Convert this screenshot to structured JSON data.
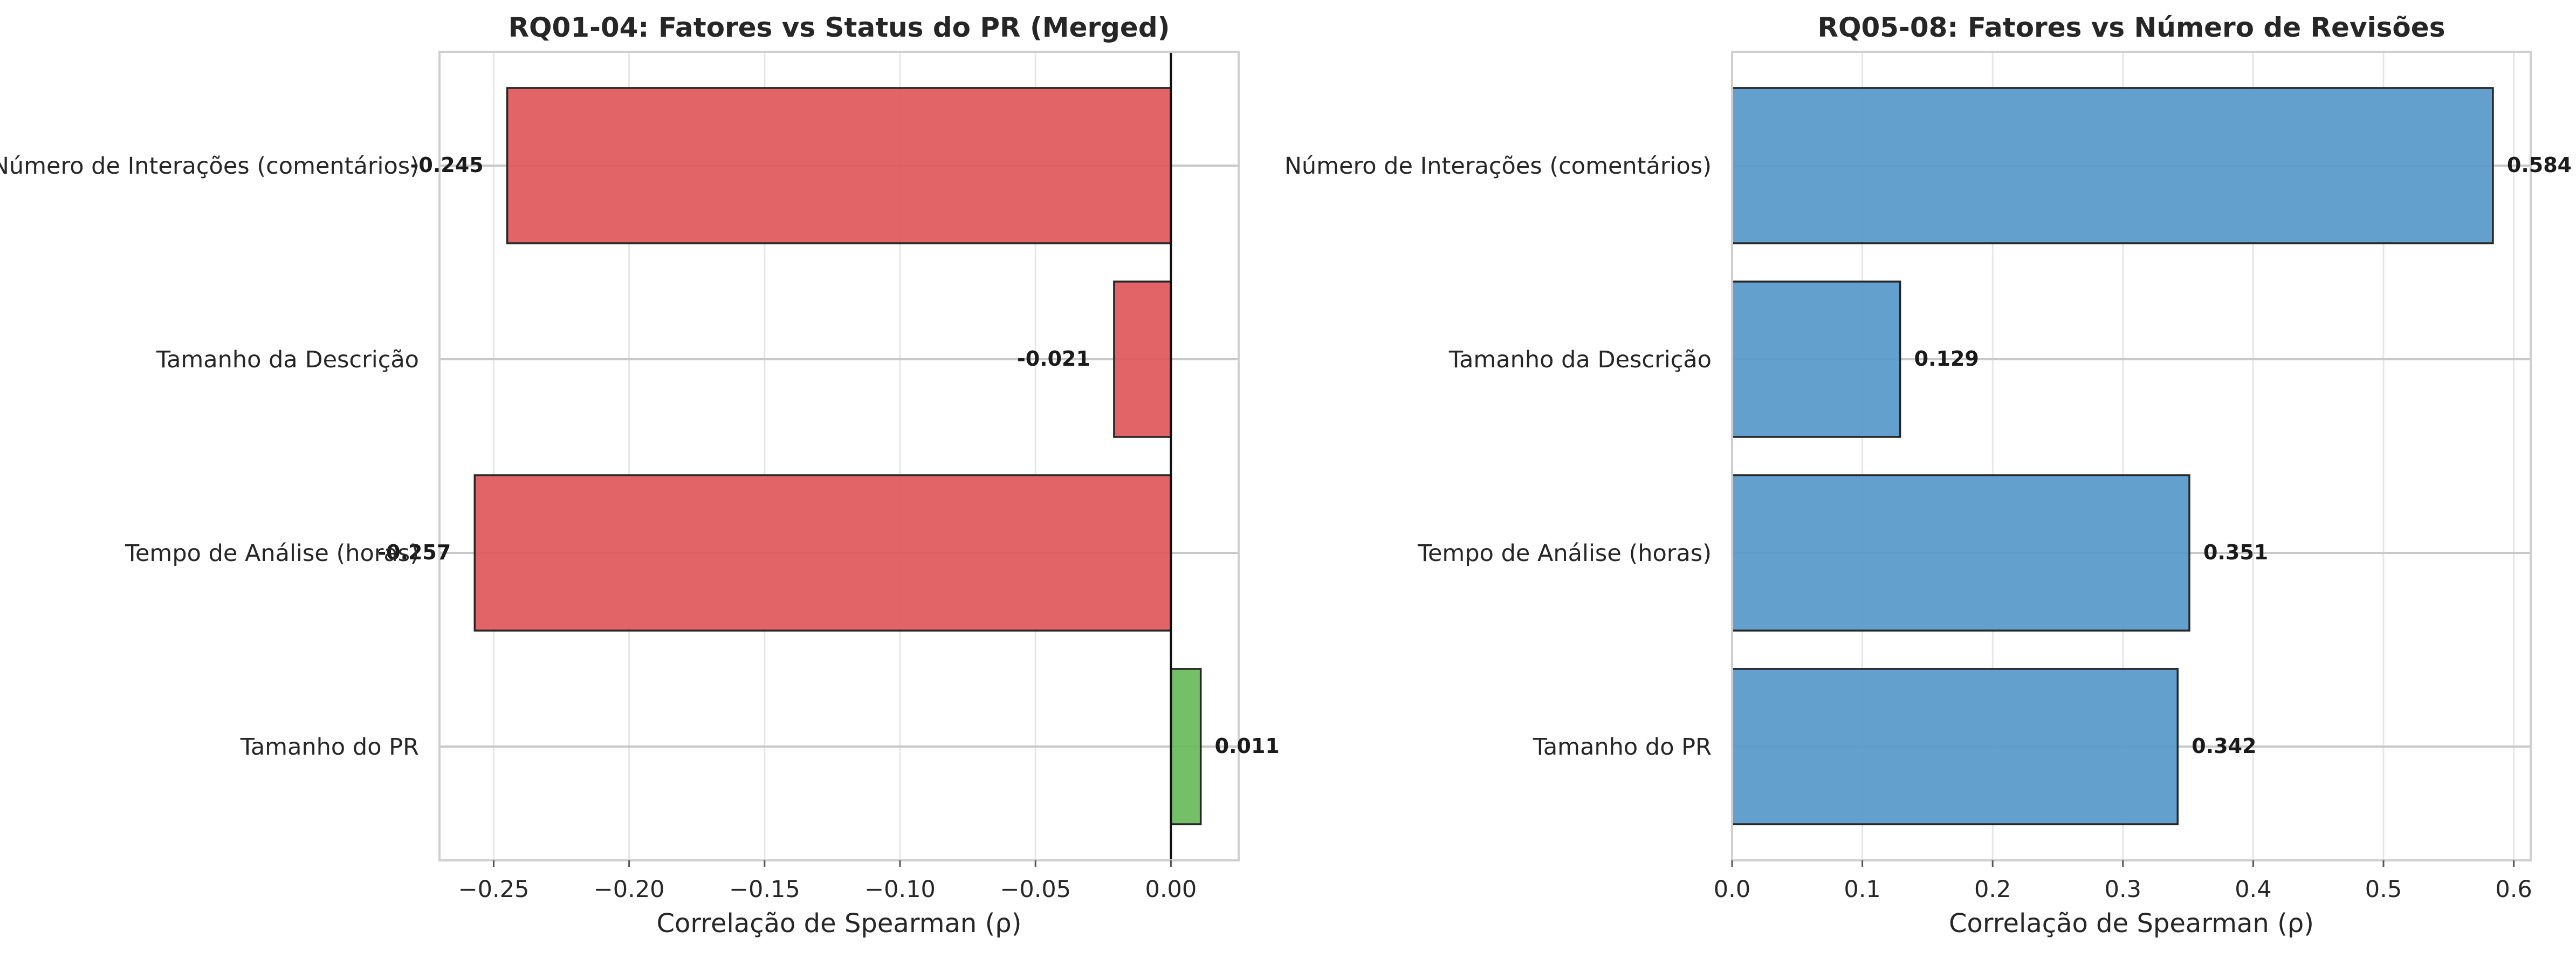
{
  "chart_data": [
    {
      "type": "bar",
      "orientation": "horizontal",
      "title": "RQ01-04: Fatores vs Status do PR (Merged)",
      "xlabel": "Correlação de Spearman (ρ)",
      "ylabel": "",
      "categories": [
        "Número de Interações (comentários)",
        "Tamanho da Descrição",
        "Tempo de Análise (horas)",
        "Tamanho do PR"
      ],
      "values": [
        -0.245,
        -0.021,
        -0.257,
        0.011
      ],
      "value_labels": [
        "-0.245",
        "-0.021",
        "-0.257",
        "0.011"
      ],
      "bar_colors": [
        "#e05c5e",
        "#e05c5e",
        "#e05c5e",
        "#6bbd5f"
      ],
      "xlim": [
        -0.27,
        0.025
      ],
      "xticks": [
        -0.25,
        -0.2,
        -0.15,
        -0.1,
        -0.05,
        0.0
      ],
      "xtick_labels": [
        "−0.25",
        "−0.20",
        "−0.15",
        "−0.10",
        "−0.05",
        "0.00"
      ],
      "zero_line": true,
      "grid": true
    },
    {
      "type": "bar",
      "orientation": "horizontal",
      "title": "RQ05-08: Fatores vs Número de Revisões",
      "xlabel": "Correlação de Spearman (ρ)",
      "ylabel": "",
      "categories": [
        "Número de Interações (comentários)",
        "Tamanho da Descrição",
        "Tempo de Análise (horas)",
        "Tamanho do PR"
      ],
      "values": [
        0.584,
        0.129,
        0.351,
        0.342
      ],
      "value_labels": [
        "0.584",
        "0.129",
        "0.351",
        "0.342"
      ],
      "bar_colors": [
        "#5b9bcb",
        "#5b9bcb",
        "#5b9bcb",
        "#5b9bcb"
      ],
      "xlim": [
        0.0,
        0.613
      ],
      "xticks": [
        0.0,
        0.1,
        0.2,
        0.3,
        0.4,
        0.5,
        0.6
      ],
      "xtick_labels": [
        "0.0",
        "0.1",
        "0.2",
        "0.3",
        "0.4",
        "0.5",
        "0.6"
      ],
      "zero_line": false,
      "grid": true
    }
  ]
}
